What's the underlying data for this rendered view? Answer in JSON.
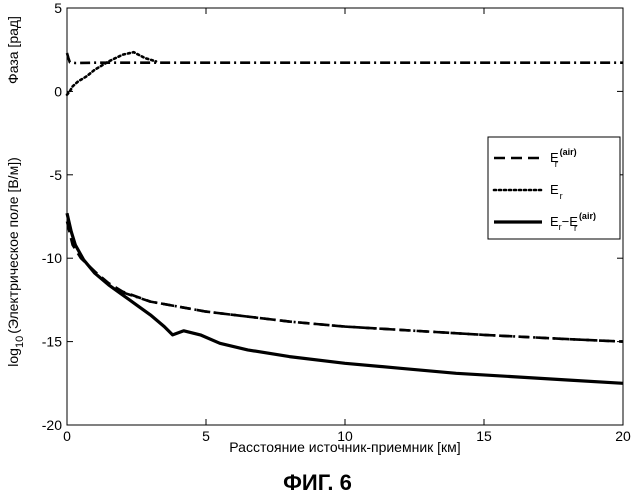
{
  "figure": {
    "caption": "ФИГ. 6"
  },
  "colors": {
    "axis": "#000000",
    "lines": "#000000",
    "background": "#ffffff"
  },
  "chart_data": {
    "type": "line",
    "title": "",
    "xlabel": "Расстояние источник-приемник [км]",
    "ylabel_upper": "Фаза [рад]",
    "ylabel_lower": "log10 (Электрическое поле [В/м])",
    "ylabel_lower_parts": {
      "prefix": "log",
      "subscript": "10",
      "rest": "(Электрическое поле [В/м])"
    },
    "xlim": [
      0,
      20
    ],
    "ylim": [
      -20,
      5
    ],
    "xticks": [
      0,
      5,
      10,
      15,
      20
    ],
    "yticks": [
      -20,
      -15,
      -10,
      -5,
      0,
      5
    ],
    "grid": false,
    "legend_placement": "upper-right",
    "series": [
      {
        "name": "E_r^(air)",
        "legend": {
          "base": "E",
          "sub": "r",
          "sup": "(air)",
          "prefix": ""
        },
        "style": "dashed",
        "x": [
          0,
          0.2,
          0.5,
          1,
          1.5,
          2,
          3,
          5,
          8,
          10,
          12,
          15,
          18,
          20
        ],
        "y": [
          -7.8,
          -9.2,
          -10.0,
          -10.8,
          -11.5,
          -12.0,
          -12.6,
          -13.2,
          -13.8,
          -14.1,
          -14.3,
          -14.6,
          -14.85,
          -15.0
        ]
      },
      {
        "name": "E_r",
        "legend": {
          "base": "E",
          "sub": "r",
          "sup": "",
          "prefix": ""
        },
        "style": "dotted",
        "x": [
          0,
          0.1,
          0.2,
          0.4,
          0.7,
          1,
          1.5,
          2,
          2.4,
          2.8,
          3.2
        ],
        "y": [
          -0.2,
          0,
          0.3,
          0.6,
          0.9,
          1.3,
          1.8,
          2.2,
          2.35,
          2.0,
          1.8
        ]
      },
      {
        "name": "E_r-E_r^(air)",
        "legend": {
          "base": "E",
          "sub": "r",
          "sup": "(air)",
          "prefix": "E_r-"
        },
        "style": "solid",
        "x": [
          0,
          0.15,
          0.3,
          0.6,
          1,
          1.5,
          2,
          2.5,
          3,
          3.5,
          3.8,
          4.2,
          4.8,
          5.5,
          6.5,
          8,
          10,
          12,
          14,
          16,
          18,
          20
        ],
        "y": [
          -7.3,
          -8.4,
          -9.2,
          -10.1,
          -10.9,
          -11.6,
          -12.2,
          -12.8,
          -13.4,
          -14.1,
          -14.6,
          -14.35,
          -14.6,
          -15.1,
          -15.5,
          -15.9,
          -16.3,
          -16.6,
          -16.9,
          -17.1,
          -17.3,
          -17.5
        ]
      },
      {
        "name": "phase",
        "legend": null,
        "style": "dashdot",
        "x": [
          0,
          0.05,
          0.1,
          0.3,
          1,
          3,
          5,
          10,
          15,
          20
        ],
        "y": [
          2.3,
          2.0,
          1.75,
          1.7,
          1.72,
          1.72,
          1.72,
          1.72,
          1.72,
          1.72
        ]
      },
      {
        "name": "lower-dashdot",
        "legend": null,
        "style": "dashdot",
        "x": [
          2,
          3,
          5,
          8,
          10,
          12,
          15,
          18,
          20
        ],
        "y": [
          -12.05,
          -12.6,
          -13.2,
          -13.8,
          -14.1,
          -14.3,
          -14.6,
          -14.85,
          -15.0
        ]
      }
    ]
  }
}
